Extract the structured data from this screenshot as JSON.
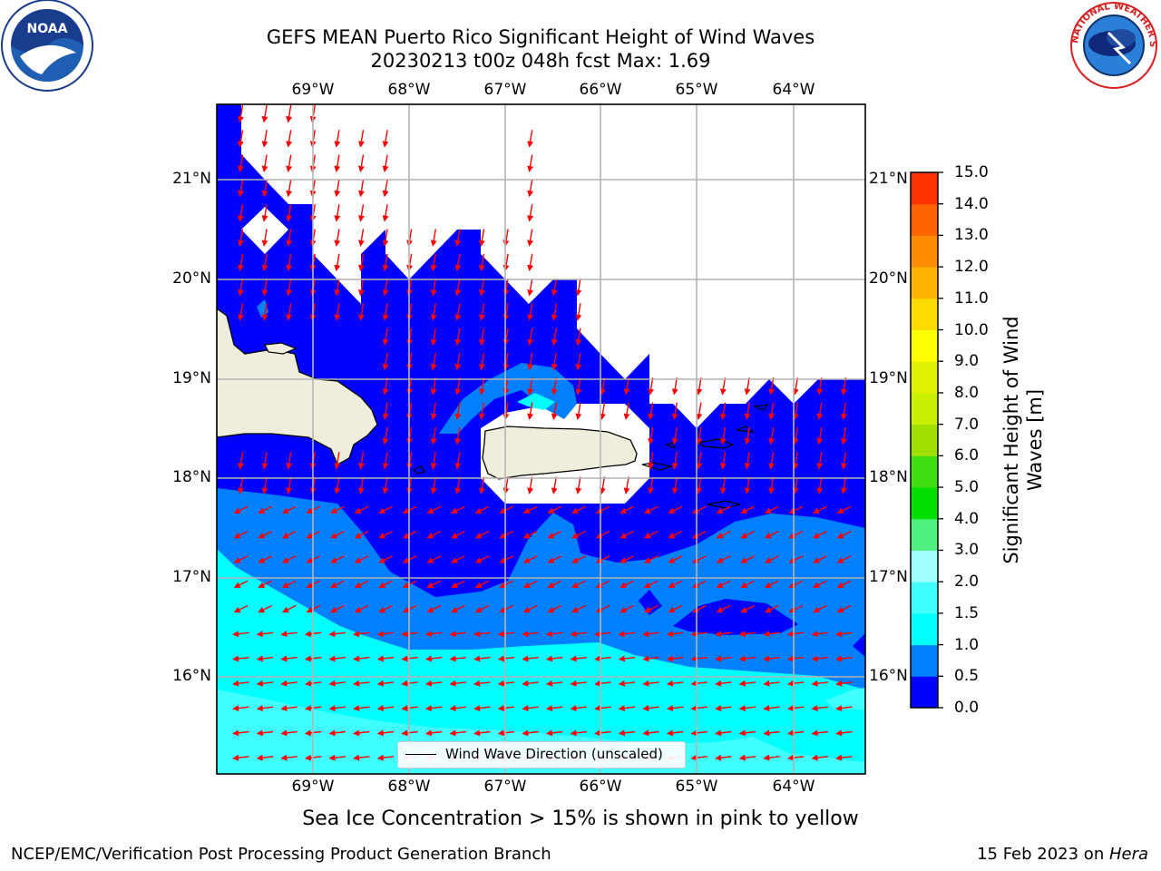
{
  "header": {
    "title_line1": "GEFS MEAN Puerto Rico Significant Height of Wind Waves",
    "title_line2": "20230213 t00z 048h fcst   Max: 1.69"
  },
  "logos": {
    "left": "NOAA",
    "right": "NATIONAL WEATHER SERVICE"
  },
  "map": {
    "lon_ticks": [
      "69°W",
      "68°W",
      "67°W",
      "66°W",
      "65°W",
      "64°W"
    ],
    "lat_ticks": [
      "21°N",
      "20°N",
      "19°N",
      "18°N",
      "17°N",
      "16°N"
    ],
    "legend_label": "Wind Wave Direction (unscaled)",
    "arrow_color": "#ff0000",
    "land_color": "#efeedc",
    "grid_color": "#b4b4b4"
  },
  "colorbar": {
    "label_line1": "Significant Height of Wind",
    "label_line2": "Waves [m]",
    "ticks": [
      "15.0",
      "14.0",
      "13.0",
      "12.0",
      "11.0",
      "10.0",
      "9.0",
      "8.0",
      "7.0",
      "6.0",
      "5.0",
      "4.0",
      "3.0",
      "2.0",
      "1.5",
      "1.0",
      "0.5",
      "0.0"
    ],
    "colors": [
      "#0000ff",
      "#0080ff",
      "#00ffff",
      "#40ffff",
      "#a0ffff",
      "#50f080",
      "#00e000",
      "#40e010",
      "#a0e000",
      "#c8f000",
      "#e0f000",
      "#ffff00",
      "#ffdc00",
      "#ffb400",
      "#ff8c00",
      "#ff6400",
      "#ff3200",
      "#ff0000"
    ]
  },
  "note": "Sea Ice Concentration > 15% is shown in pink to yellow",
  "footer": {
    "left": "NCEP/EMC/Verification Post Processing Product Generation Branch",
    "right_prefix": "15 Feb 2023 on ",
    "right_host": "Hera"
  }
}
